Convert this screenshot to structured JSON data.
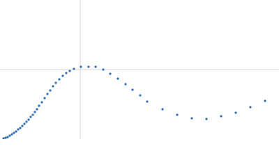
{
  "chart_data": {
    "type": "scatter",
    "x": [
      5,
      8,
      11,
      14,
      17,
      20,
      23,
      26,
      29,
      32,
      35,
      38,
      41,
      44,
      47,
      50,
      53,
      56,
      60,
      64,
      68,
      72,
      76,
      80,
      85,
      90,
      95,
      100,
      106,
      116,
      127,
      137,
      148,
      158,
      169,
      180,
      190,
      201,
      211,
      233,
      254,
      275,
      296,
      317,
      338,
      359,
      380
    ],
    "values": [
      1,
      2,
      3,
      5,
      7,
      9,
      11,
      14,
      16,
      19,
      22,
      25,
      28,
      32,
      35,
      39,
      43,
      48,
      53,
      59,
      65,
      70,
      76,
      81,
      86,
      91,
      95,
      98,
      101,
      104,
      104,
      104,
      100,
      94,
      87,
      79,
      71,
      63,
      54,
      43,
      35,
      30,
      29,
      33,
      38,
      46,
      55
    ],
    "color": "#2f6db5",
    "xlim": [
      0,
      400
    ],
    "ylim": [
      0,
      200
    ],
    "vline": 115,
    "hline": 100,
    "line_color": "#d0d4da"
  }
}
